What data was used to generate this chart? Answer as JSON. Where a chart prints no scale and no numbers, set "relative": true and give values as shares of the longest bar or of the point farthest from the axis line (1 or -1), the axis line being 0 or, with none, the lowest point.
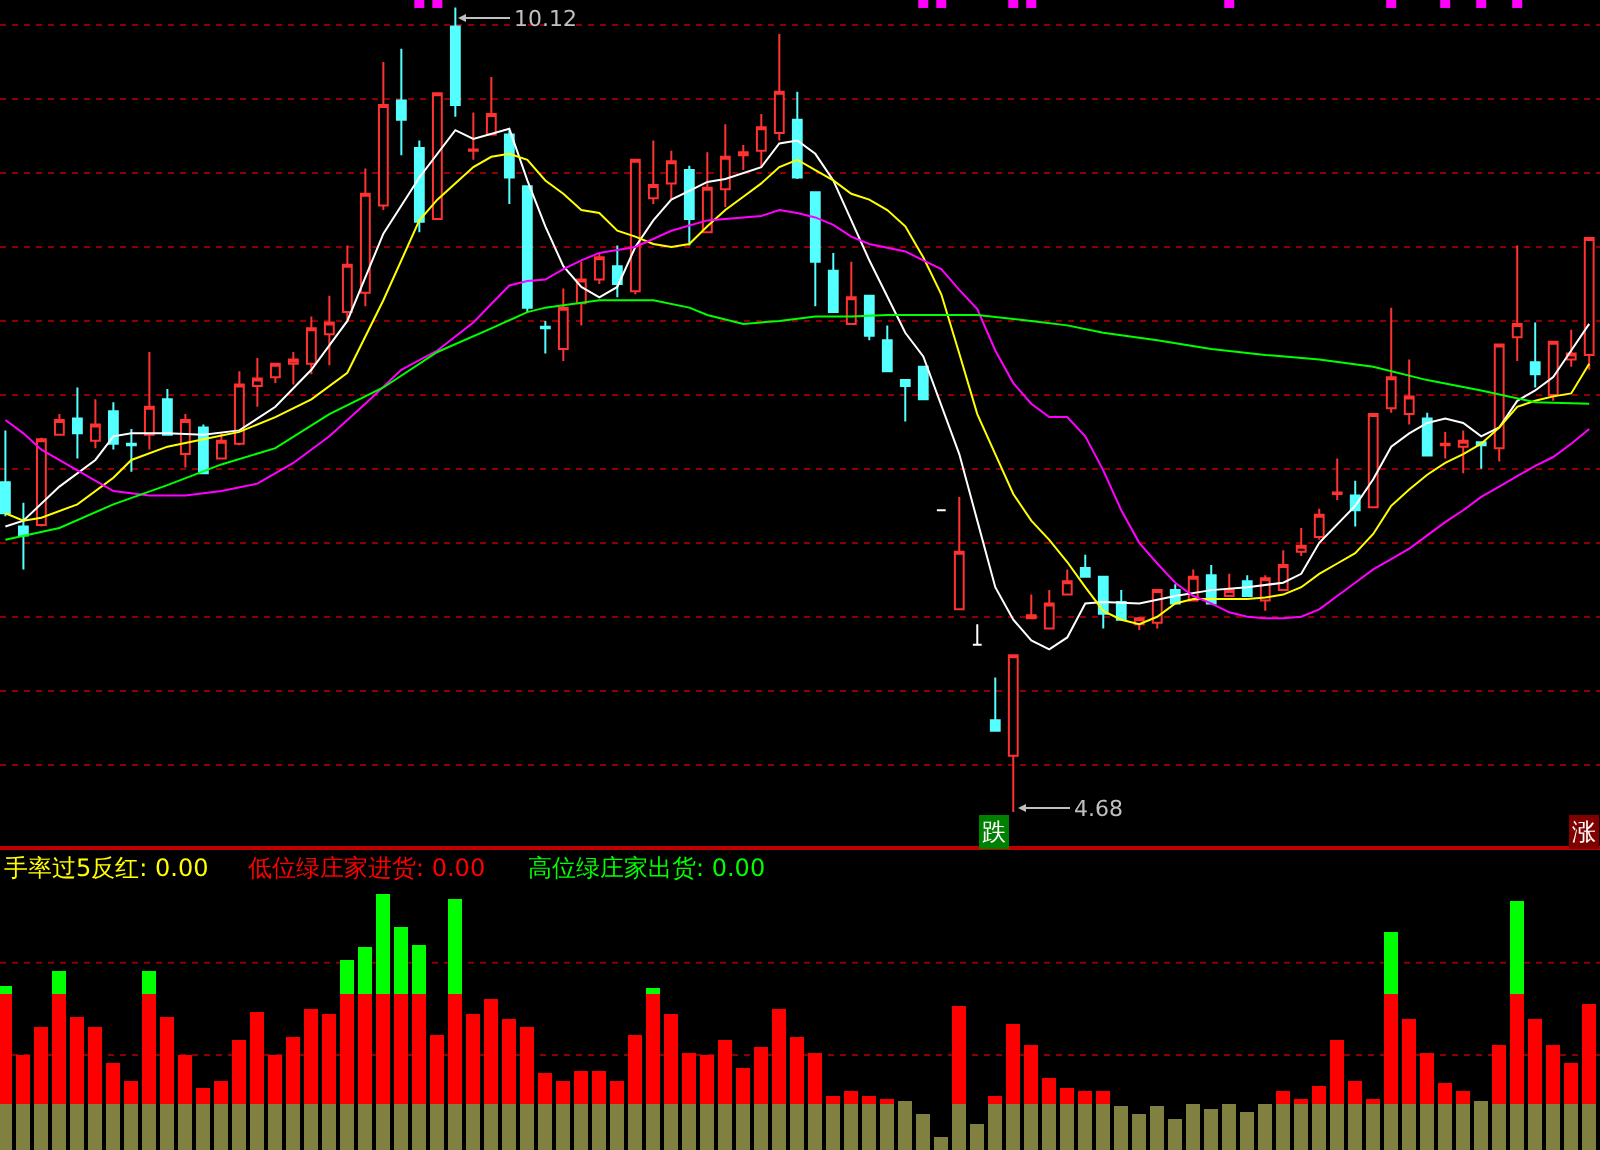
{
  "chart_data": [
    {
      "type": "candlestick",
      "categories": [
        null,
        null,
        null,
        null,
        null,
        null,
        null,
        null,
        null,
        null,
        null,
        null,
        null,
        null,
        null,
        null,
        null,
        null,
        null,
        null,
        null,
        null,
        null,
        null,
        null,
        null,
        null,
        null,
        null,
        null,
        null,
        null,
        null,
        null,
        null,
        null,
        null,
        null,
        null,
        null,
        null,
        null,
        null,
        null,
        null,
        null,
        null,
        null,
        null,
        null,
        null,
        null,
        null,
        null,
        null,
        null,
        null,
        null,
        null,
        null,
        null,
        null,
        null,
        null,
        null,
        null,
        null,
        null,
        null,
        null,
        null,
        null,
        null,
        null,
        null,
        null,
        null,
        null,
        null,
        null,
        null,
        null,
        null,
        null,
        null,
        null,
        null,
        null,
        null
      ],
      "ohlc": [
        [
          6.91,
          7.26,
          6.68,
          6.7
        ],
        [
          6.61,
          6.77,
          6.32,
          6.55
        ],
        [
          6.62,
          7.21,
          6.61,
          7.2
        ],
        [
          7.23,
          7.37,
          7.23,
          7.33
        ],
        [
          7.34,
          7.55,
          7.07,
          7.24
        ],
        [
          7.19,
          7.47,
          7.14,
          7.3
        ],
        [
          7.39,
          7.45,
          7.13,
          7.17
        ],
        [
          7.17,
          7.27,
          6.98,
          7.16
        ],
        [
          7.23,
          7.79,
          7.13,
          7.42
        ],
        [
          7.47,
          7.54,
          7.23,
          7.23
        ],
        [
          7.1,
          7.37,
          7.01,
          7.33
        ],
        [
          7.28,
          7.3,
          6.97,
          6.97
        ],
        [
          7.07,
          7.24,
          7.07,
          7.19
        ],
        [
          7.17,
          7.66,
          7.16,
          7.57
        ],
        [
          7.56,
          7.75,
          7.42,
          7.61
        ],
        [
          7.62,
          7.71,
          7.58,
          7.71
        ],
        [
          7.71,
          7.79,
          7.57,
          7.74
        ],
        [
          7.71,
          8.03,
          7.64,
          7.95
        ],
        [
          7.91,
          8.17,
          7.7,
          7.99
        ],
        [
          8.06,
          8.51,
          8.0,
          8.38
        ],
        [
          8.19,
          9.03,
          8.1,
          8.86
        ],
        [
          8.78,
          9.75,
          8.75,
          9.46
        ],
        [
          9.49,
          9.84,
          9.12,
          9.36
        ],
        [
          9.17,
          9.22,
          8.6,
          8.67
        ],
        [
          8.69,
          9.54,
          8.69,
          9.54
        ],
        [
          9.99,
          10.12,
          9.38,
          9.46
        ],
        [
          9.15,
          9.41,
          9.09,
          9.16
        ],
        [
          9.26,
          9.65,
          9.26,
          9.4
        ],
        [
          9.26,
          9.29,
          8.79,
          8.97
        ],
        [
          8.91,
          8.91,
          8.06,
          8.09
        ],
        [
          7.96,
          8.0,
          7.78,
          7.95
        ],
        [
          7.81,
          8.22,
          7.73,
          8.09
        ],
        [
          8.12,
          8.4,
          7.97,
          8.28
        ],
        [
          8.28,
          8.46,
          8.25,
          8.43
        ],
        [
          8.37,
          8.51,
          8.16,
          8.25
        ],
        [
          8.2,
          9.09,
          8.18,
          9.09
        ],
        [
          8.83,
          9.22,
          8.79,
          8.92
        ],
        [
          8.93,
          9.15,
          8.82,
          9.08
        ],
        [
          9.02,
          9.05,
          8.51,
          8.69
        ],
        [
          8.6,
          9.14,
          8.6,
          8.9
        ],
        [
          8.89,
          9.33,
          8.77,
          9.11
        ],
        [
          9.12,
          9.19,
          9.02,
          9.14
        ],
        [
          9.15,
          9.4,
          9.04,
          9.31
        ],
        [
          9.27,
          9.94,
          9.22,
          9.55
        ],
        [
          9.36,
          9.55,
          8.96,
          8.97
        ],
        [
          8.87,
          8.87,
          8.1,
          8.4
        ],
        [
          8.34,
          8.46,
          8.06,
          8.06
        ],
        [
          7.98,
          8.4,
          7.98,
          8.16
        ],
        [
          8.17,
          8.17,
          7.87,
          7.9
        ],
        [
          7.87,
          7.97,
          7.66,
          7.66
        ],
        [
          7.6,
          7.6,
          7.32,
          7.56
        ],
        [
          7.69,
          7.69,
          7.47,
          7.47
        ],
        [
          6.72,
          6.72,
          6.72,
          6.72
        ],
        [
          6.05,
          6.81,
          6.05,
          6.44
        ],
        [
          5.81,
          5.95,
          5.81,
          5.81
        ],
        [
          5.3,
          5.59,
          5.23,
          5.23
        ],
        [
          5.06,
          5.74,
          4.68,
          5.74
        ],
        [
          5.99,
          6.15,
          5.99,
          6.01
        ],
        [
          5.92,
          6.18,
          5.92,
          6.09
        ],
        [
          6.15,
          6.32,
          6.15,
          6.24
        ],
        [
          6.33,
          6.42,
          6.27,
          6.27
        ],
        [
          6.27,
          6.27,
          5.92,
          6.02
        ],
        [
          6.1,
          6.18,
          5.98,
          5.98
        ],
        [
          5.95,
          6.0,
          5.91,
          5.99
        ],
        [
          5.96,
          6.18,
          5.92,
          6.18
        ],
        [
          6.18,
          6.22,
          6.09,
          6.09
        ],
        [
          6.11,
          6.32,
          6.11,
          6.27
        ],
        [
          6.28,
          6.35,
          6.09,
          6.09
        ],
        [
          6.14,
          6.29,
          6.14,
          6.18
        ],
        [
          6.24,
          6.28,
          6.14,
          6.14
        ],
        [
          6.11,
          6.28,
          6.04,
          6.26
        ],
        [
          6.18,
          6.45,
          6.18,
          6.35
        ],
        [
          6.44,
          6.6,
          6.41,
          6.48
        ],
        [
          6.54,
          6.73,
          6.52,
          6.69
        ],
        [
          6.83,
          7.07,
          6.79,
          6.84
        ],
        [
          6.82,
          6.92,
          6.61,
          6.72
        ],
        [
          6.74,
          7.37,
          6.74,
          7.37
        ],
        [
          7.41,
          8.09,
          7.38,
          7.62
        ],
        [
          7.37,
          7.74,
          7.3,
          7.49
        ],
        [
          7.34,
          7.38,
          7.09,
          7.09
        ],
        [
          7.16,
          7.25,
          7.07,
          7.17
        ],
        [
          7.15,
          7.26,
          6.97,
          7.19
        ],
        [
          7.18,
          7.18,
          7.0,
          7.16
        ],
        [
          7.14,
          7.84,
          7.05,
          7.84
        ],
        [
          7.89,
          8.51,
          7.73,
          7.98
        ],
        [
          7.72,
          7.99,
          7.55,
          7.64
        ],
        [
          7.5,
          7.86,
          7.46,
          7.86
        ],
        [
          7.74,
          7.94,
          7.69,
          7.78
        ],
        [
          7.77,
          8.56,
          7.67,
          8.56
        ]
      ],
      "colors": [
        "#54ffff",
        "#54ffff",
        "#ff3232",
        "#ff3232",
        "#54ffff",
        "#ff3232",
        "#54ffff",
        "#54ffff",
        "#ff3232",
        "#54ffff",
        "#ff3232",
        "#54ffff",
        "#ff3232",
        "#ff3232",
        "#ff3232",
        "#ff3232",
        "#ff3232",
        "#ff3232",
        "#ff3232",
        "#ff3232",
        "#ff3232",
        "#ff3232",
        "#54ffff",
        "#54ffff",
        "#ff3232",
        "#54ffff",
        "#ff3232",
        "#ff3232",
        "#54ffff",
        "#54ffff",
        "#54ffff",
        "#ff3232",
        "#ff3232",
        "#ff3232",
        "#54ffff",
        "#ff3232",
        "#ff3232",
        "#ff3232",
        "#54ffff",
        "#ff3232",
        "#ff3232",
        "#ff3232",
        "#ff3232",
        "#ff3232",
        "#54ffff",
        "#54ffff",
        "#54ffff",
        "#ff3232",
        "#54ffff",
        "#54ffff",
        "#54ffff",
        "#54ffff",
        "#ffffff",
        "#ff3232",
        "#ffffff",
        "#54ffff",
        "#ff3232",
        "#ff3232",
        "#ff3232",
        "#ff3232",
        "#54ffff",
        "#54ffff",
        "#54ffff",
        "#ff3232",
        "#ff3232",
        "#54ffff",
        "#ff3232",
        "#54ffff",
        "#ff3232",
        "#54ffff",
        "#ff3232",
        "#ff3232",
        "#ff3232",
        "#ff3232",
        "#ff3232",
        "#54ffff",
        "#ff3232",
        "#ff3232",
        "#ff3232",
        "#54ffff",
        "#ff3232",
        "#ff3232",
        "#54ffff",
        "#ff3232",
        "#ff3232",
        "#54ffff",
        "#ff3232",
        "#ff3232",
        "#ff3232"
      ],
      "series": [
        {
          "type": "line",
          "color": "#ffffff",
          "values": [
            6.61,
            6.65,
            null,
            6.88,
            null,
            7.06,
            7.22,
            7.24,
            null,
            7.24,
            null,
            7.23,
            null,
            7.26,
            null,
            7.42,
            null,
            7.67,
            null,
            8.0,
            null,
            8.59,
            null,
            8.97,
            null,
            9.29,
            9.23,
            null,
            9.3,
            8.95,
            8.64,
            8.37,
            8.23,
            8.16,
            8.23,
            8.5,
            8.68,
            8.82,
            8.88,
            8.94,
            8.96,
            null,
            9.04,
            9.2,
            9.22,
            9.13,
            8.95,
            null,
            8.41,
            null,
            7.92,
            7.76,
            null,
            7.1,
            6.65,
            6.2,
            5.98,
            5.84,
            5.78,
            5.86,
            6.09,
            6.1,
            null,
            6.09,
            null,
            6.14,
            null,
            6.18,
            null,
            6.2,
            null,
            6.23,
            6.29,
            6.5,
            null,
            6.75,
            6.93,
            7.15,
            7.24,
            7.31,
            7.34,
            7.31,
            7.22,
            7.28,
            7.46,
            7.53,
            7.62,
            7.8,
            7.98
          ]
        },
        {
          "type": "line",
          "color": "#ffff00",
          "values": [
            6.7,
            6.65,
            6.67,
            null,
            6.76,
            null,
            6.94,
            7.06,
            null,
            7.15,
            null,
            7.2,
            null,
            7.25,
            null,
            7.35,
            null,
            7.47,
            null,
            7.65,
            null,
            8.14,
            null,
            8.68,
            8.82,
            null,
            9.04,
            9.11,
            9.13,
            9.09,
            8.95,
            8.86,
            8.75,
            8.73,
            8.61,
            8.57,
            8.52,
            8.5,
            8.52,
            8.64,
            8.75,
            8.84,
            8.93,
            9.04,
            9.09,
            9.02,
            8.95,
            8.86,
            8.82,
            8.75,
            8.64,
            8.43,
            8.18,
            7.78,
            7.37,
            7.1,
            6.83,
            6.65,
            6.52,
            6.37,
            6.2,
            6.04,
            5.98,
            5.95,
            6.0,
            6.09,
            6.12,
            6.12,
            6.12,
            6.12,
            6.13,
            6.15,
            6.2,
            6.29,
            6.36,
            6.43,
            6.56,
            6.75,
            6.86,
            6.96,
            7.04,
            7.1,
            7.17,
            7.28,
            7.42,
            7.46,
            7.49,
            7.51,
            7.71
          ]
        },
        {
          "type": "line",
          "color": "#ff00ff",
          "values": [
            7.33,
            7.24,
            7.13,
            null,
            6.99,
            null,
            6.85,
            null,
            6.82,
            null,
            6.82,
            null,
            6.85,
            null,
            6.9,
            null,
            7.04,
            null,
            7.22,
            null,
            7.44,
            null,
            7.67,
            null,
            7.8,
            null,
            7.99,
            null,
            8.24,
            8.27,
            8.28,
            8.35,
            8.41,
            8.46,
            null,
            8.5,
            null,
            8.61,
            null,
            8.68,
            null,
            8.7,
            8.71,
            8.75,
            8.73,
            8.7,
            8.65,
            8.57,
            8.52,
            null,
            8.47,
            8.41,
            8.35,
            8.21,
            8.08,
            7.8,
            7.58,
            7.44,
            7.35,
            7.35,
            7.22,
            6.99,
            6.72,
            6.5,
            6.36,
            6.23,
            6.14,
            6.09,
            6.03,
            6.0,
            5.99,
            5.99,
            6.0,
            6.05,
            6.14,
            6.23,
            6.32,
            6.39,
            6.46,
            6.55,
            6.64,
            6.72,
            6.81,
            6.88,
            6.95,
            7.02,
            7.08,
            7.17,
            7.27
          ]
        },
        {
          "type": "line",
          "color": "#00ff00",
          "values": [
            6.52,
            null,
            null,
            6.6,
            null,
            null,
            6.76,
            null,
            null,
            6.89,
            null,
            null,
            7.03,
            null,
            null,
            7.14,
            null,
            null,
            7.37,
            null,
            null,
            7.55,
            null,
            null,
            7.79,
            null,
            null,
            7.95,
            null,
            8.06,
            8.09,
            null,
            null,
            8.14,
            null,
            null,
            8.14,
            null,
            8.09,
            8.04,
            null,
            7.98,
            null,
            8.0,
            null,
            8.03,
            null,
            8.03,
            null,
            8.04,
            null,
            8.04,
            null,
            null,
            8.04,
            null,
            null,
            8.0,
            null,
            7.97,
            null,
            7.92,
            null,
            null,
            7.87,
            null,
            null,
            7.81,
            null,
            null,
            7.77,
            null,
            null,
            7.74,
            null,
            null,
            7.69,
            null,
            null,
            7.6,
            null,
            null,
            7.53,
            null,
            null,
            7.45,
            null,
            null,
            7.44
          ]
        },
        {
          "type": "scatter",
          "color": "#ff00ff",
          "marker": "square",
          "values": [
            null,
            null,
            null,
            null,
            null,
            null,
            null,
            null,
            null,
            null,
            null,
            null,
            null,
            null,
            null,
            null,
            null,
            null,
            null,
            null,
            null,
            null,
            null,
            10.15,
            10.15,
            null,
            null,
            null,
            null,
            null,
            null,
            null,
            null,
            null,
            null,
            null,
            null,
            null,
            null,
            null,
            null,
            null,
            null,
            null,
            null,
            null,
            null,
            null,
            null,
            null,
            null,
            10.15,
            10.15,
            null,
            null,
            null,
            10.15,
            10.15,
            null,
            null,
            null,
            null,
            null,
            null,
            null,
            null,
            null,
            null,
            10.15,
            null,
            null,
            null,
            null,
            null,
            null,
            null,
            null,
            10.15,
            null,
            null,
            10.15,
            null,
            10.15,
            null,
            10.15,
            null,
            null,
            null,
            null
          ]
        }
      ],
      "ylim": [
        4.45,
        10.17
      ],
      "yticks": [
        {
          "value": 5,
          "label": null
        },
        {
          "value": 5.5,
          "label": null
        },
        {
          "value": 6,
          "label": null
        },
        {
          "value": 6.5,
          "label": null
        },
        {
          "value": 7,
          "label": null
        },
        {
          "value": 7.5,
          "label": null
        },
        {
          "value": 8,
          "label": null
        },
        {
          "value": 8.5,
          "label": null
        },
        {
          "value": 9,
          "label": null
        },
        {
          "value": 9.5,
          "label": null
        },
        {
          "value": 10,
          "label": null
        }
      ],
      "grid": "y",
      "annotations": [
        "10.12",
        "4.68",
        "跌",
        "涨"
      ]
    },
    {
      "type": "bar",
      "stacked": true,
      "relative": true,
      "categories": [
        null,
        null,
        null,
        null,
        null,
        null,
        null,
        null,
        null,
        null,
        null,
        null,
        null,
        null,
        null,
        null,
        null,
        null,
        null,
        null,
        null,
        null,
        null,
        null,
        null,
        null,
        null,
        null,
        null,
        null,
        null,
        null,
        null,
        null,
        null,
        null,
        null,
        null,
        null,
        null,
        null,
        null,
        null,
        null,
        null,
        null,
        null,
        null,
        null,
        null,
        null,
        null,
        null,
        null,
        null,
        null,
        null,
        null,
        null,
        null,
        null,
        null,
        null,
        null,
        null,
        null,
        null,
        null,
        null,
        null,
        null,
        null,
        null,
        null,
        null,
        null,
        null,
        null,
        null,
        null,
        null,
        null,
        null,
        null,
        null,
        null,
        null,
        null,
        null
      ],
      "series": [
        {
          "color": "#808040",
          "values": [
            0.18,
            0.18,
            0.18,
            0.18,
            0.18,
            0.18,
            0.18,
            0.18,
            0.18,
            0.18,
            0.18,
            0.18,
            0.18,
            0.18,
            0.18,
            0.18,
            0.18,
            0.18,
            0.18,
            0.18,
            0.18,
            0.18,
            0.18,
            0.18,
            0.18,
            0.18,
            0.18,
            0.18,
            0.18,
            0.18,
            0.18,
            0.18,
            0.18,
            0.18,
            0.18,
            0.18,
            0.18,
            0.18,
            0.18,
            0.18,
            0.18,
            0.18,
            0.18,
            0.18,
            0.18,
            0.18,
            0.18,
            0.18,
            0.18,
            0.18,
            0.19,
            0.14,
            0.05,
            0.18,
            0.1,
            0.18,
            0.18,
            0.18,
            0.18,
            0.18,
            0.18,
            0.18,
            0.17,
            0.14,
            0.17,
            0.12,
            0.18,
            0.16,
            0.18,
            0.15,
            0.18,
            0.18,
            0.18,
            0.18,
            0.18,
            0.18,
            0.18,
            0.18,
            0.18,
            0.18,
            0.18,
            0.18,
            0.19,
            0.18,
            0.18,
            0.18,
            0.18,
            0.18,
            0.18
          ]
        },
        {
          "color": "#ff0000",
          "values": [
            0.43,
            0.19,
            0.3,
            0.43,
            0.34,
            0.3,
            0.16,
            0.09,
            0.43,
            0.34,
            0.19,
            0.06,
            0.09,
            0.25,
            0.36,
            0.19,
            0.26,
            0.37,
            0.35,
            0.43,
            0.43,
            0.43,
            0.43,
            0.43,
            0.27,
            0.43,
            0.35,
            0.41,
            0.33,
            0.3,
            0.12,
            0.09,
            0.13,
            0.13,
            0.09,
            0.27,
            0.43,
            0.35,
            0.2,
            0.19,
            0.25,
            0.14,
            0.22,
            0.37,
            0.26,
            0.2,
            0.03,
            0.05,
            0.03,
            0.02,
            null,
            null,
            null,
            0.38,
            null,
            0.03,
            0.31,
            0.23,
            0.1,
            0.06,
            0.05,
            0.05,
            null,
            null,
            null,
            null,
            null,
            null,
            null,
            null,
            null,
            0.05,
            0.02,
            0.07,
            0.25,
            0.09,
            0.02,
            0.43,
            0.33,
            0.2,
            0.08,
            0.05,
            null,
            0.23,
            0.43,
            0.33,
            0.23,
            0.16,
            0.39
          ]
        },
        {
          "color": "#00ff00",
          "values": [
            0.03,
            null,
            null,
            0.09,
            null,
            null,
            null,
            null,
            0.09,
            null,
            null,
            null,
            null,
            null,
            null,
            null,
            null,
            null,
            null,
            0.13,
            0.18,
            0.39,
            0.26,
            0.19,
            null,
            0.37,
            null,
            null,
            null,
            null,
            null,
            null,
            null,
            null,
            null,
            null,
            0.02,
            null,
            null,
            null,
            null,
            null,
            null,
            null,
            null,
            null,
            null,
            null,
            null,
            null,
            null,
            null,
            null,
            null,
            null,
            null,
            null,
            null,
            null,
            null,
            null,
            null,
            null,
            null,
            null,
            null,
            null,
            null,
            null,
            null,
            null,
            null,
            null,
            null,
            null,
            null,
            null,
            0.24,
            null,
            null,
            null,
            null,
            null,
            null,
            0.36,
            null,
            null,
            null,
            null
          ]
        }
      ],
      "ref_lines": [
        {
          "axis": "y",
          "value": 0.73,
          "color": "#8b0000",
          "line_style": "dotted"
        },
        {
          "axis": "y",
          "value": 0.37,
          "color": "#8b0000",
          "line_style": "dotted"
        }
      ],
      "annotations": [
        "手率过5反红: 0.00",
        "低位绿庄家进货: 0.00",
        "高位绿庄家出货: 0.00"
      ]
    }
  ]
}
